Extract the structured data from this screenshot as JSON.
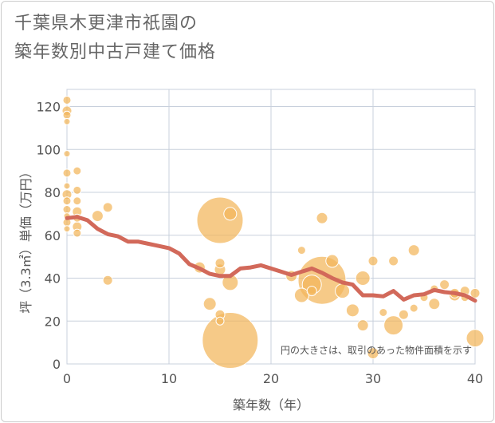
{
  "title": "千葉県木更津市祇園の\n築年数別中古戸建て価格",
  "chart_data": {
    "type": "scatter",
    "xlabel": "築年数（年）",
    "ylabel": "坪（3.3㎡）単価（万円）",
    "xlim": [
      0,
      40
    ],
    "ylim": [
      0,
      128
    ],
    "xticks": [
      0,
      10,
      20,
      30,
      40
    ],
    "yticks": [
      0,
      20,
      40,
      60,
      80,
      100,
      120
    ],
    "grid": true,
    "annotation": "円の大きさは、取引のあった物件面積を示す",
    "colors": {
      "bubble": "#f2b65a",
      "bubble_edge": "#ffffff",
      "line": "#d2695a",
      "grid": "#c8d0dc",
      "axis_text": "#555555"
    },
    "bubbles": [
      {
        "x": 0,
        "y": 123,
        "size": 5
      },
      {
        "x": 0,
        "y": 118,
        "size": 6
      },
      {
        "x": 0,
        "y": 116,
        "size": 5
      },
      {
        "x": 0,
        "y": 113,
        "size": 4
      },
      {
        "x": 0,
        "y": 98,
        "size": 4
      },
      {
        "x": 0,
        "y": 89,
        "size": 5
      },
      {
        "x": 0,
        "y": 83,
        "size": 4
      },
      {
        "x": 0,
        "y": 79,
        "size": 6
      },
      {
        "x": 0,
        "y": 76,
        "size": 5
      },
      {
        "x": 0,
        "y": 72,
        "size": 5
      },
      {
        "x": 0,
        "y": 69,
        "size": 4
      },
      {
        "x": 0,
        "y": 66,
        "size": 5
      },
      {
        "x": 0,
        "y": 63,
        "size": 4
      },
      {
        "x": 1,
        "y": 90,
        "size": 5
      },
      {
        "x": 1,
        "y": 81,
        "size": 5
      },
      {
        "x": 1,
        "y": 76,
        "size": 5
      },
      {
        "x": 1,
        "y": 71,
        "size": 6
      },
      {
        "x": 1,
        "y": 68,
        "size": 5
      },
      {
        "x": 1,
        "y": 64,
        "size": 6
      },
      {
        "x": 1,
        "y": 61,
        "size": 5
      },
      {
        "x": 3,
        "y": 69,
        "size": 7
      },
      {
        "x": 4,
        "y": 73,
        "size": 6
      },
      {
        "x": 4,
        "y": 39,
        "size": 6
      },
      {
        "x": 13,
        "y": 45,
        "size": 7
      },
      {
        "x": 14,
        "y": 28,
        "size": 8
      },
      {
        "x": 15,
        "y": 67,
        "size": 29
      },
      {
        "x": 15,
        "y": 47,
        "size": 6
      },
      {
        "x": 15,
        "y": 44,
        "size": 7
      },
      {
        "x": 15,
        "y": 23,
        "size": 6
      },
      {
        "x": 15,
        "y": 20,
        "size": 5
      },
      {
        "x": 16,
        "y": 70,
        "size": 8
      },
      {
        "x": 16,
        "y": 38,
        "size": 10
      },
      {
        "x": 16,
        "y": 11,
        "size": 35
      },
      {
        "x": 22,
        "y": 41,
        "size": 7
      },
      {
        "x": 23,
        "y": 53,
        "size": 5
      },
      {
        "x": 23,
        "y": 32,
        "size": 9
      },
      {
        "x": 24,
        "y": 37,
        "size": 12
      },
      {
        "x": 24,
        "y": 34,
        "size": 6
      },
      {
        "x": 25,
        "y": 68,
        "size": 7
      },
      {
        "x": 25,
        "y": 39,
        "size": 30
      },
      {
        "x": 26,
        "y": 48,
        "size": 8
      },
      {
        "x": 27,
        "y": 34,
        "size": 9
      },
      {
        "x": 28,
        "y": 25,
        "size": 8
      },
      {
        "x": 29,
        "y": 40,
        "size": 9
      },
      {
        "x": 29,
        "y": 18,
        "size": 7
      },
      {
        "x": 30,
        "y": 48,
        "size": 6
      },
      {
        "x": 30,
        "y": 5,
        "size": 7
      },
      {
        "x": 31,
        "y": 24,
        "size": 5
      },
      {
        "x": 32,
        "y": 48,
        "size": 6
      },
      {
        "x": 32,
        "y": 18,
        "size": 12
      },
      {
        "x": 33,
        "y": 23,
        "size": 6
      },
      {
        "x": 34,
        "y": 53,
        "size": 7
      },
      {
        "x": 34,
        "y": 26,
        "size": 5
      },
      {
        "x": 35,
        "y": 31,
        "size": 5
      },
      {
        "x": 36,
        "y": 35,
        "size": 5
      },
      {
        "x": 36,
        "y": 28,
        "size": 7
      },
      {
        "x": 37,
        "y": 37,
        "size": 6
      },
      {
        "x": 38,
        "y": 33,
        "size": 6
      },
      {
        "x": 38,
        "y": 32,
        "size": 7
      },
      {
        "x": 39,
        "y": 34,
        "size": 6
      },
      {
        "x": 39,
        "y": 31,
        "size": 5
      },
      {
        "x": 40,
        "y": 33,
        "size": 6
      },
      {
        "x": 40,
        "y": 12,
        "size": 11
      }
    ],
    "trend": [
      {
        "x": 0,
        "y": 68
      },
      {
        "x": 1,
        "y": 68.5
      },
      {
        "x": 2,
        "y": 67
      },
      {
        "x": 3,
        "y": 63
      },
      {
        "x": 4,
        "y": 60.5
      },
      {
        "x": 5,
        "y": 59.5
      },
      {
        "x": 6,
        "y": 57
      },
      {
        "x": 7,
        "y": 57
      },
      {
        "x": 8,
        "y": 56
      },
      {
        "x": 9,
        "y": 55
      },
      {
        "x": 10,
        "y": 54
      },
      {
        "x": 11,
        "y": 51.5
      },
      {
        "x": 12,
        "y": 46.5
      },
      {
        "x": 13,
        "y": 44.5
      },
      {
        "x": 14,
        "y": 42
      },
      {
        "x": 15,
        "y": 41
      },
      {
        "x": 16,
        "y": 41
      },
      {
        "x": 17,
        "y": 44.5
      },
      {
        "x": 18,
        "y": 45
      },
      {
        "x": 19,
        "y": 46
      },
      {
        "x": 20,
        "y": 44.5
      },
      {
        "x": 21,
        "y": 43
      },
      {
        "x": 22,
        "y": 41.5
      },
      {
        "x": 23,
        "y": 43
      },
      {
        "x": 24,
        "y": 44.5
      },
      {
        "x": 25,
        "y": 42.5
      },
      {
        "x": 26,
        "y": 40
      },
      {
        "x": 27,
        "y": 38
      },
      {
        "x": 28,
        "y": 37
      },
      {
        "x": 29,
        "y": 32
      },
      {
        "x": 30,
        "y": 32
      },
      {
        "x": 31,
        "y": 31.5
      },
      {
        "x": 32,
        "y": 34
      },
      {
        "x": 33,
        "y": 30
      },
      {
        "x": 34,
        "y": 32
      },
      {
        "x": 35,
        "y": 32.5
      },
      {
        "x": 36,
        "y": 34.5
      },
      {
        "x": 37,
        "y": 33.5
      },
      {
        "x": 38,
        "y": 33
      },
      {
        "x": 39,
        "y": 32
      },
      {
        "x": 40,
        "y": 29.5
      }
    ]
  }
}
